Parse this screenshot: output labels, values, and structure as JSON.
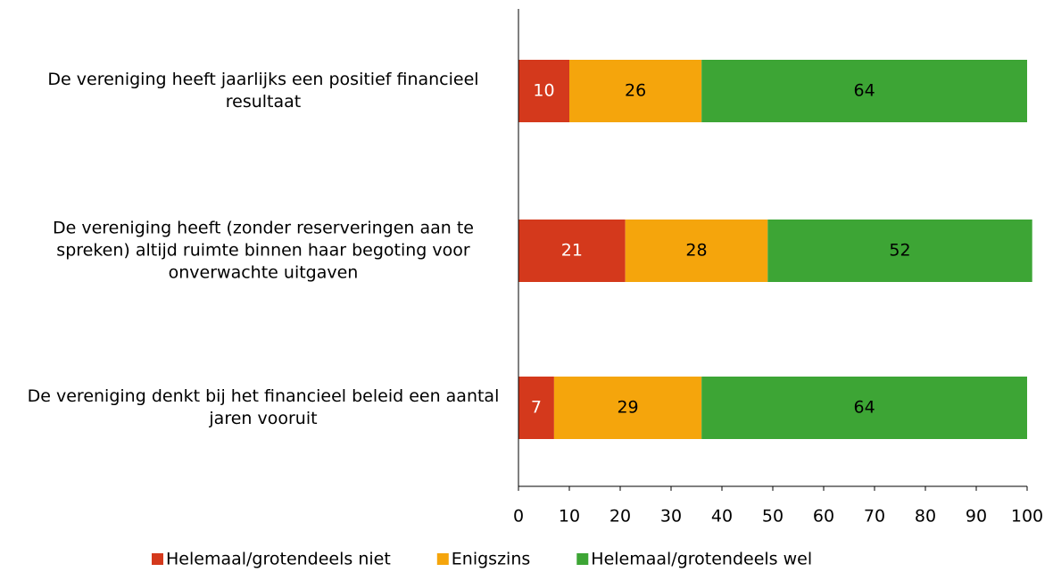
{
  "chart_data": {
    "type": "stacked-barh",
    "categories": [
      "De vereniging heeft jaarlijks een positief financieel resultaat",
      "De vereniging heeft (zonder reserveringen aan te spreken) altijd ruimte binnen haar begoting voor onverwachte uitgaven",
      "De vereniging denkt bij het financieel beleid een aantal jaren vooruit"
    ],
    "series": [
      {
        "name": "Helemaal/grotendeels niet",
        "color": "#d4391c",
        "label_color": "#ffffff",
        "values": [
          10,
          21,
          7
        ]
      },
      {
        "name": "Enigszins",
        "color": "#f5a50c",
        "label_color": "#000000",
        "values": [
          26,
          28,
          29
        ]
      },
      {
        "name": "Helemaal/grotendeels wel",
        "color": "#3da535",
        "label_color": "#000000",
        "values": [
          64,
          52,
          64
        ]
      }
    ],
    "xlim": [
      0,
      100
    ],
    "xticks": [
      0,
      10,
      20,
      30,
      40,
      50,
      60,
      70,
      80,
      90,
      100
    ],
    "legend": "bottom"
  }
}
